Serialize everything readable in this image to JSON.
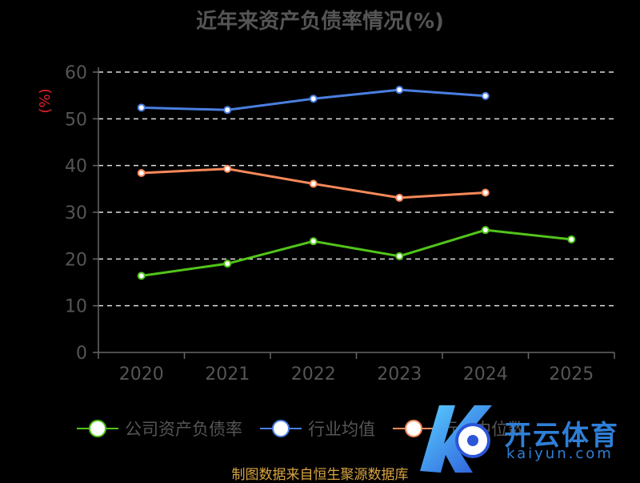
{
  "title": "近年来资产负债率情况(%)",
  "source_text": "制图数据来自恒生聚源数据库",
  "watermark": {
    "text": "开云体育",
    "subtext": "kaiyun.com"
  },
  "chart_data": {
    "type": "line",
    "title": "近年来资产负债率情况(%)",
    "ylabel": "(%)",
    "xlabel": "",
    "categories": [
      "2020",
      "2021",
      "2022",
      "2023",
      "2024",
      "2025"
    ],
    "ylim": [
      0,
      60
    ],
    "yticks": [
      0,
      10,
      20,
      30,
      40,
      50,
      60
    ],
    "grid": "horizontal dashed",
    "legend_position": "bottom",
    "series": [
      {
        "name": "公司资产负债率",
        "color": "#52c41a",
        "values": [
          16.4,
          19.0,
          23.8,
          20.6,
          26.2,
          24.2
        ]
      },
      {
        "name": "行业均值",
        "color": "#4a7fe0",
        "values": [
          52.4,
          51.9,
          54.3,
          56.2,
          54.9,
          null
        ]
      },
      {
        "name": "行业中位数",
        "color": "#f7895a",
        "values": [
          38.4,
          39.3,
          36.1,
          33.1,
          34.2,
          null
        ]
      }
    ]
  }
}
